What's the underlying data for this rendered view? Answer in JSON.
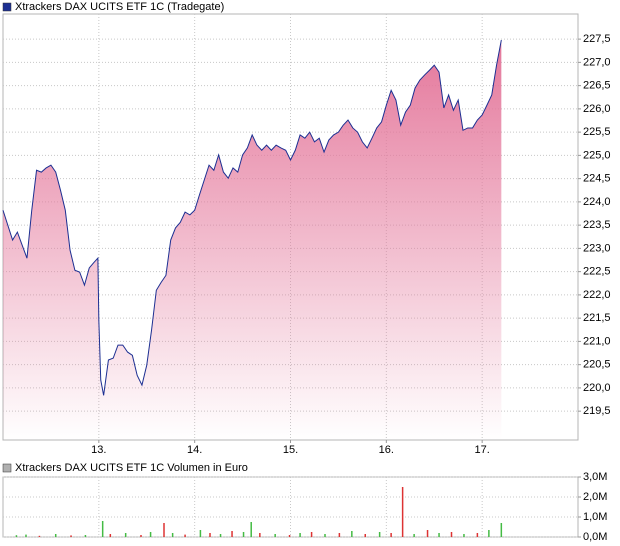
{
  "chart_data": [
    {
      "type": "area",
      "x": [
        12.0,
        12.05,
        12.1,
        12.15,
        12.2,
        12.25,
        12.3,
        12.35,
        12.4,
        12.45,
        12.5,
        12.55,
        12.6,
        12.65,
        12.7,
        12.75,
        12.8,
        12.85,
        12.9,
        12.95,
        12.99,
        13.0,
        13.02,
        13.05,
        13.1,
        13.15,
        13.2,
        13.25,
        13.3,
        13.35,
        13.4,
        13.45,
        13.5,
        13.55,
        13.6,
        13.65,
        13.7,
        13.75,
        13.8,
        13.85,
        13.9,
        13.95,
        14.0,
        14.05,
        14.1,
        14.15,
        14.2,
        14.25,
        14.3,
        14.35,
        14.4,
        14.45,
        14.5,
        14.55,
        14.6,
        14.65,
        14.7,
        14.75,
        14.8,
        14.85,
        14.9,
        14.95,
        15.0,
        15.05,
        15.1,
        15.15,
        15.2,
        15.25,
        15.3,
        15.35,
        15.4,
        15.45,
        15.5,
        15.55,
        15.6,
        15.65,
        15.7,
        15.75,
        15.8,
        15.85,
        15.9,
        15.95,
        16.0,
        16.05,
        16.1,
        16.15,
        16.2,
        16.25,
        16.3,
        16.35,
        16.4,
        16.45,
        16.5,
        16.55,
        16.6,
        16.65,
        16.7,
        16.75,
        16.8,
        16.85,
        16.9,
        16.95,
        17.0,
        17.05,
        17.1,
        17.15,
        17.2
      ],
      "series": [
        {
          "name": "Xtrackers DAX UCITS ETF 1C (Tradegate)",
          "color": "#1c2f92",
          "fill": "#e4779b",
          "values": [
            223.82,
            223.5,
            223.18,
            223.35,
            223.07,
            222.79,
            223.82,
            224.68,
            224.64,
            224.73,
            224.79,
            224.64,
            224.25,
            223.82,
            222.96,
            222.53,
            222.49,
            222.21,
            222.58,
            222.7,
            222.79,
            221.46,
            220.17,
            219.84,
            220.6,
            220.64,
            220.92,
            220.92,
            220.77,
            220.7,
            220.27,
            220.06,
            220.49,
            221.24,
            222.1,
            222.27,
            222.42,
            223.18,
            223.44,
            223.56,
            223.78,
            223.72,
            223.82,
            224.15,
            224.47,
            224.79,
            224.68,
            225.01,
            224.64,
            224.51,
            224.73,
            224.64,
            225.01,
            225.16,
            225.44,
            225.22,
            225.11,
            225.22,
            225.11,
            225.22,
            225.16,
            225.11,
            224.9,
            225.11,
            225.44,
            225.37,
            225.5,
            225.29,
            225.37,
            225.07,
            225.33,
            225.44,
            225.5,
            225.65,
            225.76,
            225.59,
            225.5,
            225.29,
            225.16,
            225.37,
            225.59,
            225.72,
            226.08,
            226.4,
            226.19,
            225.65,
            225.93,
            226.08,
            226.45,
            226.62,
            226.73,
            226.83,
            226.94,
            226.79,
            226.02,
            226.3,
            225.97,
            226.19,
            225.54,
            225.59,
            225.59,
            225.76,
            225.87,
            226.08,
            226.3,
            226.94,
            227.48
          ]
        }
      ],
      "xlim": [
        12,
        18
      ],
      "xticks": [
        {
          "value": 13,
          "label": "13."
        },
        {
          "value": 14,
          "label": "14."
        },
        {
          "value": 15,
          "label": "15."
        },
        {
          "value": 16,
          "label": "16."
        },
        {
          "value": 17,
          "label": "17."
        }
      ],
      "ylim": [
        218.88,
        228.04
      ],
      "yticks": [
        {
          "value": 219.5,
          "label": "219,5"
        },
        {
          "value": 220.0,
          "label": "220,0"
        },
        {
          "value": 220.5,
          "label": "220,5"
        },
        {
          "value": 221.0,
          "label": "221,0"
        },
        {
          "value": 221.5,
          "label": "221,5"
        },
        {
          "value": 222.0,
          "label": "222,0"
        },
        {
          "value": 222.5,
          "label": "222,5"
        },
        {
          "value": 223.0,
          "label": "223,0"
        },
        {
          "value": 223.5,
          "label": "223,5"
        },
        {
          "value": 224.0,
          "label": "224,0"
        },
        {
          "value": 224.5,
          "label": "224,5"
        },
        {
          "value": 225.0,
          "label": "225,0"
        },
        {
          "value": 225.5,
          "label": "225,5"
        },
        {
          "value": 226.0,
          "label": "226,0"
        },
        {
          "value": 226.5,
          "label": "226,5"
        },
        {
          "value": 227.0,
          "label": "227,0"
        },
        {
          "value": 227.5,
          "label": "227,5"
        }
      ],
      "grid": true
    },
    {
      "type": "bar",
      "x": [
        12.14,
        12.24,
        12.38,
        12.55,
        12.71,
        12.86,
        13.04,
        13.12,
        13.28,
        13.44,
        13.54,
        13.68,
        13.77,
        13.9,
        14.06,
        14.16,
        14.27,
        14.39,
        14.51,
        14.59,
        14.68,
        14.84,
        14.99,
        15.1,
        15.22,
        15.36,
        15.51,
        15.64,
        15.78,
        15.93,
        16.05,
        16.17,
        16.29,
        16.43,
        16.55,
        16.68,
        16.81,
        16.95,
        17.07,
        17.2
      ],
      "series": [
        {
          "name": "Xtrackers DAX UCITS ETF 1C Volumen in Euro",
          "color": "#b0b0b0",
          "values": [
            90000,
            120000,
            60000,
            150000,
            80000,
            100000,
            800000,
            150000,
            200000,
            100000,
            250000,
            700000,
            200000,
            120000,
            350000,
            200000,
            150000,
            300000,
            250000,
            750000,
            200000,
            150000,
            100000,
            200000,
            250000,
            150000,
            200000,
            300000,
            150000,
            250000,
            200000,
            2500000,
            150000,
            350000,
            200000,
            250000,
            150000,
            200000,
            350000,
            700000
          ],
          "colors": [
            "#44bb44",
            "#44bb44",
            "#dd3333",
            "#44bb44",
            "#dd3333",
            "#44bb44",
            "#44bb44",
            "#dd3333",
            "#44bb44",
            "#dd3333",
            "#44bb44",
            "#dd3333",
            "#44bb44",
            "#dd3333",
            "#44bb44",
            "#dd3333",
            "#44bb44",
            "#dd3333",
            "#44bb44",
            "#44bb44",
            "#dd3333",
            "#44bb44",
            "#dd3333",
            "#44bb44",
            "#dd3333",
            "#44bb44",
            "#dd3333",
            "#44bb44",
            "#dd3333",
            "#44bb44",
            "#dd3333",
            "#dd3333",
            "#44bb44",
            "#dd3333",
            "#44bb44",
            "#dd3333",
            "#44bb44",
            "#dd3333",
            "#44bb44",
            "#44bb44"
          ]
        }
      ],
      "xlim": [
        12,
        18
      ],
      "ylim": [
        0,
        3000000
      ],
      "yticks": [
        {
          "value": 0,
          "label": "0,0M"
        },
        {
          "value": 1000000,
          "label": "1,0M"
        },
        {
          "value": 2000000,
          "label": "2,0M"
        },
        {
          "value": 3000000,
          "label": "3,0M"
        }
      ],
      "grid": true
    }
  ]
}
